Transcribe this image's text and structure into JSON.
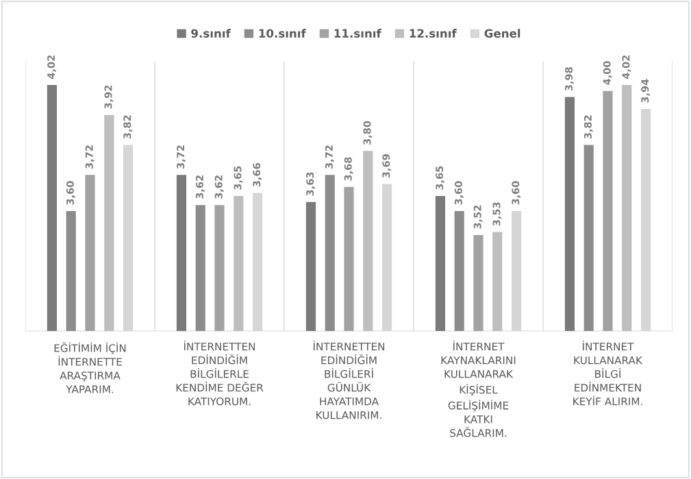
{
  "chart_data": {
    "type": "bar",
    "categories": [
      "EĞİTİMİM İÇİN\nİNTERNETTE\nARAŞTIRMA\nYAPARIM.",
      "İNTERNETTEN\nEDİNDİĞİM\nBİLGİLERLE\nKENDİME DEĞER\nKATIYORUM.",
      "İNTERNETTEN\nEDİNDİĞİM\nBİLGİLERİ\nGÜNLÜK\nHAYATIMDA\nKULLANIRIM.",
      "İNTERNET\nKAYNAKLARINI\nKULLANARAK\nKİŞİSEL\nGELİŞİMİME\nKATKI\nSAĞLARIM.",
      "İNTERNET\nKULLANARAK\nBİLGİ\nEDİNMEKTEN\nKEYİF ALIRIM."
    ],
    "series": [
      {
        "name": "9.sınıf",
        "color": "#7a7a7a",
        "values": [
          4.02,
          3.72,
          3.63,
          3.65,
          3.98
        ],
        "value_labels": [
          "4,02",
          "3,72",
          "3,63",
          "3,65",
          "3,98"
        ]
      },
      {
        "name": "10.sınıf",
        "color": "#8c8c8c",
        "values": [
          3.6,
          3.62,
          3.72,
          3.6,
          3.82
        ],
        "value_labels": [
          "3,60",
          "3,62",
          "3,72",
          "3,60",
          "3,82"
        ]
      },
      {
        "name": "11.sınıf",
        "color": "#a2a2a2",
        "values": [
          3.72,
          3.62,
          3.68,
          3.52,
          4.0
        ],
        "value_labels": [
          "3,72",
          "3,62",
          "3,68",
          "3,52",
          "4,00"
        ]
      },
      {
        "name": "12.sınıf",
        "color": "#bebebe",
        "values": [
          3.92,
          3.65,
          3.8,
          3.53,
          4.02
        ],
        "value_labels": [
          "3,92",
          "3,65",
          "3,80",
          "3,53",
          "4,02"
        ]
      },
      {
        "name": "Genel",
        "color": "#d6d6d6",
        "values": [
          3.82,
          3.66,
          3.69,
          3.6,
          3.94
        ],
        "value_labels": [
          "3,82",
          "3,66",
          "3,69",
          "3,60",
          "3,94"
        ]
      }
    ],
    "ylim": [
      3.2,
      4.1
    ],
    "grid": "x",
    "legend": "top",
    "tick_labels": "x"
  }
}
